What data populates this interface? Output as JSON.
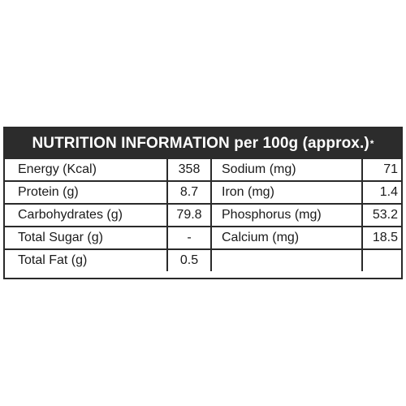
{
  "header": {
    "title": "NUTRITION INFORMATION per 100g (approx.)",
    "footnote_mark": "*"
  },
  "rows": [
    {
      "label_left": "Energy (Kcal)",
      "value_left": "358",
      "label_right": "Sodium (mg)",
      "value_right": "71"
    },
    {
      "label_left": "Protein (g)",
      "value_left": "8.7",
      "label_right": "Iron (mg)",
      "value_right": "1.4"
    },
    {
      "label_left": "Carbohydrates (g)",
      "value_left": "79.8",
      "label_right": "Phosphorus (mg)",
      "value_right": "53.2"
    },
    {
      "label_left": "Total Sugar (g)",
      "value_left": "-",
      "label_right": "Calcium (mg)",
      "value_right": "18.5"
    },
    {
      "label_left": "Total Fat (g)",
      "value_left": "0.5",
      "label_right": "",
      "value_right": ""
    }
  ],
  "colors": {
    "header_bg": "#2c2c2c",
    "header_text": "#ffffff",
    "border": "#2a2a2a"
  }
}
